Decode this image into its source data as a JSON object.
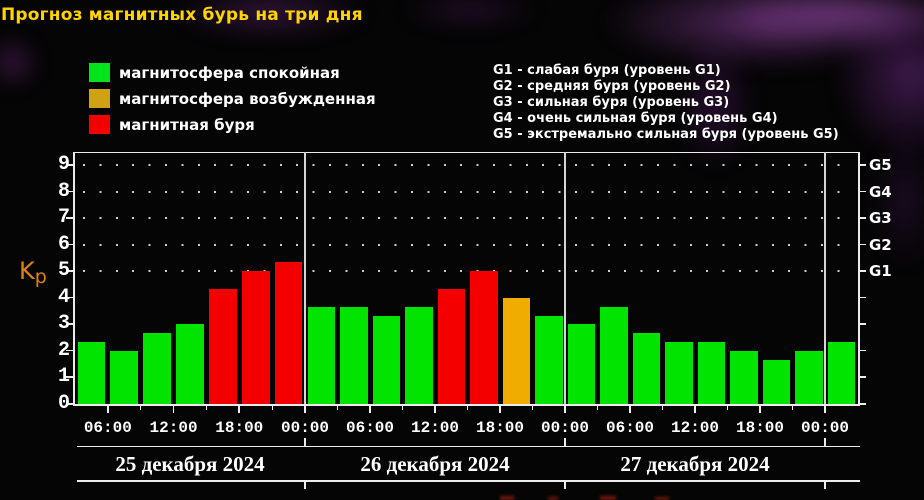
{
  "title": "Прогноз магнитных бурь на три дня",
  "colors": {
    "quiet": "#00e400",
    "excited": "#f0ac00",
    "storm": "#f50000",
    "legend_quiet": "#00e41c",
    "legend_excited": "#cfa115",
    "legend_storm": "#f50000",
    "title": "#ffd400",
    "kp_label": "#e0820f",
    "text": "#ffffff",
    "background": "#050505"
  },
  "legend": [
    {
      "key": "quiet",
      "label": "магнитосфера спокойная",
      "swatch": "legend_quiet"
    },
    {
      "key": "excited",
      "label": "магнитосфера возбужденная",
      "swatch": "legend_excited"
    },
    {
      "key": "storm",
      "label": "магнитная буря",
      "swatch": "legend_storm"
    }
  ],
  "storm_scale": [
    "G1 - слабая буря (уровень G1)",
    "G2 - средняя буря (уровень G2)",
    "G3 - сильная буря (уровень G3)",
    "G4 - очень сильная буря (уровень G4)",
    "G5 - экстремально сильная буря (уровень G5)"
  ],
  "y_axis": {
    "label_main": "K",
    "label_sub": "p",
    "ticks": [
      0,
      1,
      2,
      3,
      4,
      5,
      6,
      7,
      8,
      9
    ]
  },
  "right_axis": {
    "labels": [
      {
        "text": "G1",
        "kp": 5
      },
      {
        "text": "G2",
        "kp": 6
      },
      {
        "text": "G3",
        "kp": 7
      },
      {
        "text": "G4",
        "kp": 8
      },
      {
        "text": "G5",
        "kp": 9
      }
    ]
  },
  "chart_data": {
    "type": "bar",
    "ylabel": "Kp",
    "ylim": [
      0,
      9.5
    ],
    "grid": "dotted horizontal lines at Kp 5-9 only",
    "grid_levels": [
      5,
      6,
      7,
      8,
      9
    ],
    "legend_position": "top-left",
    "days": [
      {
        "date": "25 декабря 2024",
        "x_tick_labels": [
          "06:00",
          "12:00",
          "18:00",
          "00:00"
        ],
        "bars": [
          {
            "start": "03:00",
            "kp": 2.33,
            "status": "quiet"
          },
          {
            "start": "06:00",
            "kp": 2.0,
            "status": "quiet"
          },
          {
            "start": "09:00",
            "kp": 2.67,
            "status": "quiet"
          },
          {
            "start": "12:00",
            "kp": 3.0,
            "status": "quiet"
          },
          {
            "start": "15:00",
            "kp": 4.33,
            "status": "storm"
          },
          {
            "start": "18:00",
            "kp": 5.0,
            "status": "storm"
          },
          {
            "start": "21:00",
            "kp": 5.33,
            "status": "storm"
          }
        ]
      },
      {
        "date": "26 декабря 2024",
        "x_tick_labels": [
          "06:00",
          "12:00",
          "18:00",
          "00:00"
        ],
        "bars": [
          {
            "start": "00:00",
            "kp": 3.67,
            "status": "quiet"
          },
          {
            "start": "03:00",
            "kp": 3.67,
            "status": "quiet"
          },
          {
            "start": "06:00",
            "kp": 3.33,
            "status": "quiet"
          },
          {
            "start": "09:00",
            "kp": 3.67,
            "status": "quiet"
          },
          {
            "start": "12:00",
            "kp": 4.33,
            "status": "storm"
          },
          {
            "start": "15:00",
            "kp": 5.0,
            "status": "storm"
          },
          {
            "start": "18:00",
            "kp": 4.0,
            "status": "excited"
          },
          {
            "start": "21:00",
            "kp": 3.33,
            "status": "quiet"
          }
        ]
      },
      {
        "date": "27 декабря 2024",
        "x_tick_labels": [
          "06:00",
          "12:00",
          "18:00",
          "00:00"
        ],
        "bars": [
          {
            "start": "00:00",
            "kp": 3.0,
            "status": "quiet"
          },
          {
            "start": "03:00",
            "kp": 3.67,
            "status": "quiet"
          },
          {
            "start": "06:00",
            "kp": 2.67,
            "status": "quiet"
          },
          {
            "start": "09:00",
            "kp": 2.33,
            "status": "quiet"
          },
          {
            "start": "12:00",
            "kp": 2.33,
            "status": "quiet"
          },
          {
            "start": "15:00",
            "kp": 2.0,
            "status": "quiet"
          },
          {
            "start": "18:00",
            "kp": 1.67,
            "status": "quiet"
          },
          {
            "start": "21:00",
            "kp": 2.0,
            "status": "quiet"
          }
        ]
      }
    ],
    "trailing_bar": {
      "start": "00:00",
      "kp": 2.33,
      "status": "quiet"
    }
  }
}
